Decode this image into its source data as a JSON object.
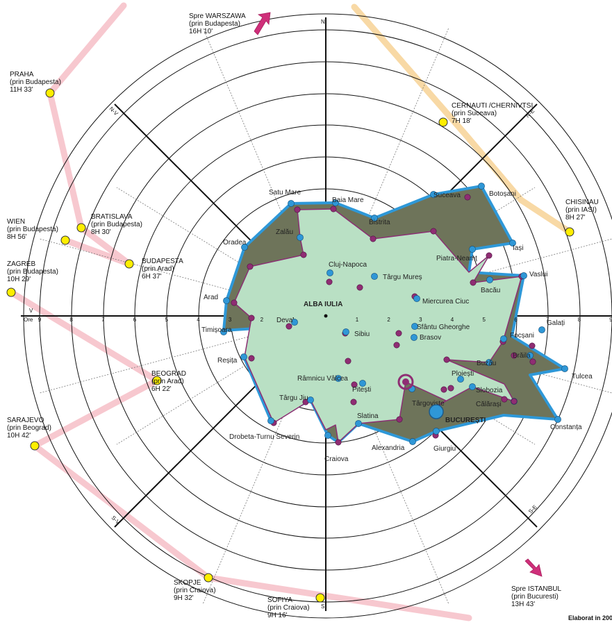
{
  "center": {
    "label": "ALBA IULIA"
  },
  "compass": {
    "n": "N",
    "s": "S",
    "v": "V",
    "ne": "N-E",
    "nv": "N-V",
    "se": "S-E",
    "sv": "S-V"
  },
  "scale": {
    "label": "Ore",
    "ticks": [
      "1",
      "2",
      "3",
      "4",
      "5",
      "6",
      "7",
      "8",
      "9"
    ]
  },
  "footer": {
    "credit": "Elaborat in 200"
  },
  "external": [
    {
      "id": "warszawa",
      "lines": [
        "Spre WARSZAWA",
        "(prin Budapesta)",
        "16H 10'"
      ],
      "marker": "arrow"
    },
    {
      "id": "praha",
      "lines": [
        "PRAHA",
        "(prin Budapesta)",
        "11H 33'"
      ],
      "marker": "dot"
    },
    {
      "id": "bratislava",
      "lines": [
        "BRATISLAVA",
        "(prin Budapesta)",
        "8H 30'"
      ],
      "marker": "dot"
    },
    {
      "id": "wien",
      "lines": [
        "WIEN",
        "(prin Budapesta)",
        "8H 56'"
      ],
      "marker": "dot"
    },
    {
      "id": "budapesta",
      "lines": [
        "BUDAPESTA",
        "(prin Arad)",
        "6H 37'"
      ],
      "marker": "dot"
    },
    {
      "id": "zagreb",
      "lines": [
        "ZAGREB",
        "(prin Budapesta)",
        "10H 29'"
      ],
      "marker": "dot"
    },
    {
      "id": "beograd",
      "lines": [
        "BEOGRAD",
        "(prin Arad)",
        "6H 22'"
      ],
      "marker": "dot"
    },
    {
      "id": "sarajevo",
      "lines": [
        "SARAJEVO",
        "(prin Beograd)",
        "10H 42'"
      ],
      "marker": "dot"
    },
    {
      "id": "skopje",
      "lines": [
        "SKOPJE",
        "(prin Craiova)",
        "9H 32'"
      ],
      "marker": "dot"
    },
    {
      "id": "sofiya",
      "lines": [
        "SOFIYA",
        "(prin Craiova)",
        "9H 16'"
      ],
      "marker": "dot"
    },
    {
      "id": "cernauti",
      "lines": [
        "CERNAUTI /CHERNIVTSI",
        "(prin Suceava)",
        "7H 18'"
      ],
      "marker": "dot"
    },
    {
      "id": "chisinau",
      "lines": [
        "CHISINAU",
        "(prin IASI)",
        "8H 27'"
      ],
      "marker": "dot"
    },
    {
      "id": "istanbul",
      "lines": [
        "Spre ISTANBUL",
        "(prin Bucuresti)",
        "13H 43'"
      ],
      "marker": "arrow"
    }
  ],
  "cities": [
    "Satu Mare",
    "Baia Mare",
    "Bistrita",
    "Suceava",
    "Botoșani",
    "Zalău",
    "Oradea",
    "Piatra-Neamț",
    "Iași",
    "Cluj-Napoca",
    "Târgu Mureș",
    "Vaslui",
    "Bacău",
    "Arad",
    "Miercurea Ciuc",
    "Deva",
    "Sibiu",
    "Sfântu Gheorghe",
    "Brasov",
    "Timișoara",
    "Focșani",
    "Galați",
    "Brăila",
    "Reșița",
    "Tulcea",
    "Buzău",
    "Râmnicu Vâlcea",
    "Ploiești",
    "Pitești",
    "Slobozia",
    "Târgu Jiu",
    "Târgoviște",
    "Călărași",
    "Slatina",
    "Constanța",
    "Drobeta-Turnu Severin",
    "Alexandria",
    "Giurgiu",
    "Craiova",
    "BUCUREȘTI"
  ],
  "colors": {
    "polygon_fill": "#b9e0c4",
    "polygon_dark": "#6e745a",
    "outline_blue": "#2e98d8",
    "outline_purple": "#8b2f73",
    "dot_blue": "#2f97d6",
    "dot_purple": "#8f2d73",
    "dot_yellow": "#ffee00",
    "route_pink": "#f7c8cf",
    "route_orange": "#f8d9a5",
    "arrow": "#cf2f7a"
  }
}
